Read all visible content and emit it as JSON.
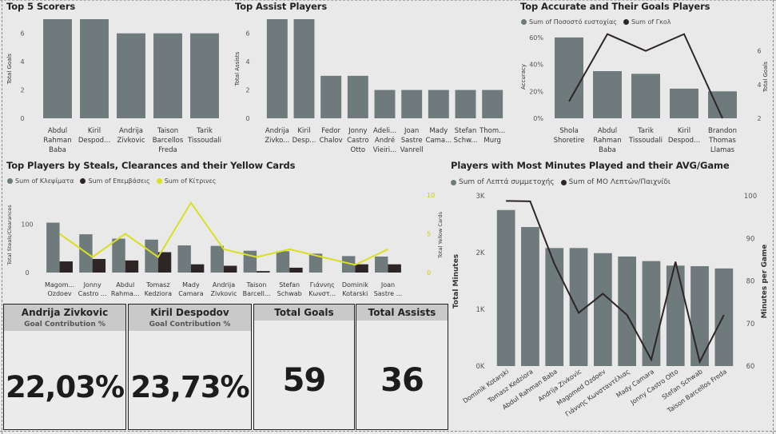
{
  "colors": {
    "bar": "#6e7a7b",
    "dark": "#2d2526",
    "yellow": "#d9e021",
    "line": "#2d2526"
  },
  "top_scorers": {
    "title": "Top 5 Scorers",
    "y_label": "Total Goals",
    "chart_data": {
      "type": "bar",
      "categories": [
        "Abdul Rahman Baba",
        "Kiril Despodov",
        "Andrija Zivkovic",
        "Taison Barcellos Freda",
        "Tarik Tissoudali"
      ],
      "tick_labels": [
        [
          "Abdul",
          "Rahman",
          "Baba"
        ],
        [
          "Kiril",
          "Despod..."
        ],
        [
          "Andrija",
          "Zivkovic"
        ],
        [
          "Taison",
          "Barcellos",
          "Freda"
        ],
        [
          "Tarik",
          "Tissoudali"
        ]
      ],
      "values": [
        7,
        7,
        6,
        6,
        6
      ],
      "ylim": [
        0,
        7
      ],
      "yticks": [
        "0",
        "2",
        "4",
        "6"
      ],
      "ylabel": "Total Goals"
    }
  },
  "top_assists": {
    "title": "Top Assist Players",
    "y_label": "Total Assists",
    "chart_data": {
      "type": "bar",
      "categories": [
        "Andrija Zivkovic",
        "Kiril Despodov",
        "Fedor Chalov",
        "Jonny Castro Otto",
        "Adelino André Vieirinha",
        "Joan Sastre Vanrell",
        "Mady Camara",
        "Stefan Schwab",
        "Thomas Murg"
      ],
      "tick_labels": [
        [
          "Andrija",
          "Zivko..."
        ],
        [
          "Kiril",
          "Desp..."
        ],
        [
          "Fedor",
          "Chalov"
        ],
        [
          "Jonny",
          "Castro",
          "Otto"
        ],
        [
          "Adeli...",
          "André",
          "Vieiri..."
        ],
        [
          "Joan",
          "Sastre",
          "Vanrell"
        ],
        [
          "Mady",
          "Cama..."
        ],
        [
          "Stefan",
          "Schw..."
        ],
        [
          "Thom...",
          "Murg"
        ]
      ],
      "values": [
        7,
        7,
        3,
        3,
        2,
        2,
        2,
        2,
        2
      ],
      "ylim": [
        0,
        7
      ],
      "yticks": [
        "0",
        "2",
        "4",
        "6"
      ],
      "ylabel": "Total Assists"
    }
  },
  "accuracy": {
    "title": "Top Accurate and Their Goals Players",
    "legend": [
      "Sum of Ποσοστό ευστοχίας",
      "Sum of Γκολ"
    ],
    "y_label_left": "Accuracy",
    "y_label_right": "Total Goals",
    "chart_data": {
      "type": "bar",
      "categories": [
        "Shola Shoretire",
        "Abdul Rahman Baba",
        "Tarik Tissoudali",
        "Kiril Despodov",
        "Brandon Thomas Llamas"
      ],
      "tick_labels": [
        [
          "Shola",
          "Shoretire"
        ],
        [
          "Abdul",
          "Rahman",
          "Baba"
        ],
        [
          "Tarik",
          "Tissoudali"
        ],
        [
          "Kiril",
          "Despod..."
        ],
        [
          "Brandon",
          "Thomas",
          "Llamas"
        ]
      ],
      "series": [
        {
          "name": "Sum of Ποσοστό ευστοχίας",
          "type": "bar",
          "values": [
            60,
            35,
            33,
            22,
            20
          ]
        },
        {
          "name": "Sum of Γκολ",
          "type": "line",
          "values": [
            3,
            7,
            6,
            7,
            2
          ]
        }
      ],
      "ylim_left": [
        0,
        70
      ],
      "yticks_left": [
        "0%",
        "20%",
        "40%",
        "60%"
      ],
      "ylim_right": [
        2,
        7.6
      ],
      "yticks_right": [
        "2",
        "4",
        "6"
      ]
    }
  },
  "steals": {
    "title": "Top Players by Steals, Clearances and their Yellow Cards",
    "legend": [
      "Sum of Κλεψίματα",
      "Sum of Επεμβάσεις",
      "Sum of Κίτρινες"
    ],
    "y_label_left": "Total Steals/Clearances",
    "y_label_right": "Total Yellow Cards",
    "chart_data": {
      "type": "bar",
      "categories": [
        "Magomed Ozdoev",
        "Jonny Castro Otto",
        "Abdul Rahman Baba",
        "Tomasz Kedziora",
        "Mady Camara",
        "Andrija Zivkovic",
        "Taison Barcellos Freda",
        "Stefan Schwab",
        "Γιάννης Κωνσταντέλιας",
        "Dominik Kotarski",
        "Joan Sastre Vanrell"
      ],
      "tick_labels": [
        [
          "Magom...",
          "Ozdoev"
        ],
        [
          "Jonny",
          "Castro ..."
        ],
        [
          "Abdul",
          "Rahma..."
        ],
        [
          "Tomasz",
          "Kedziora"
        ],
        [
          "Mady",
          "Camara"
        ],
        [
          "Andrija",
          "Zivkovic"
        ],
        [
          "Taison",
          "Barcell..."
        ],
        [
          "Stefan",
          "Schwab"
        ],
        [
          "Γιάννης",
          "Κωνστ..."
        ],
        [
          "Dominik",
          "Kotarski"
        ],
        [
          "Joan",
          "Sastre ..."
        ]
      ],
      "series": [
        {
          "name": "Sum of Κλεψίματα",
          "type": "bar",
          "values": [
            103,
            79,
            70,
            68,
            56,
            55,
            45,
            44,
            39,
            34,
            33
          ]
        },
        {
          "name": "Sum of Επεμβάσεις",
          "type": "bar",
          "values": [
            23,
            28,
            25,
            42,
            17,
            14,
            3,
            10,
            0,
            17,
            17
          ]
        },
        {
          "name": "Sum of Κίτρινες",
          "type": "line",
          "values": [
            5,
            2,
            5,
            2,
            9,
            3,
            2,
            3,
            2,
            1,
            3
          ]
        }
      ],
      "ylim_left": [
        0,
        160
      ],
      "yticks_left": [
        "0",
        "100"
      ],
      "ylim_right": [
        0,
        10
      ],
      "yticks_right": [
        "0",
        "5",
        "10"
      ]
    }
  },
  "minutes": {
    "title": "Players with Most Minutes Played and their AVG/Game",
    "legend": [
      "Sum of Λεπτά συμμετοχής",
      "Sum of ΜΟ Λεπτών/Παιχνίδι"
    ],
    "y_label_left": "Total Minutes",
    "y_label_right": "Minutes per Game",
    "chart_data": {
      "type": "bar",
      "categories": [
        "Dominik Kotarski",
        "Tomasz Kedziora",
        "Abdul Rahman Baba",
        "Andrija Zivkovic",
        "Magomed Ozdoev",
        "Γιάννης Κωνσταντέλιας",
        "Mady Camara",
        "Jonny Castro Otto",
        "Stefan Schwab",
        "Taison Barcellos Freda"
      ],
      "series": [
        {
          "name": "Sum of Λεπτά συμμετοχής",
          "type": "bar",
          "values": [
            2750,
            2450,
            2080,
            2080,
            1990,
            1930,
            1850,
            1770,
            1760,
            1720
          ]
        },
        {
          "name": "Sum of ΜΟ Λεπτών/Παιχνίδι",
          "type": "line",
          "values": [
            98.8,
            98.7,
            84,
            72.5,
            77,
            72,
            61.5,
            84.5,
            61,
            72
          ]
        }
      ],
      "ylim_left": [
        0,
        3000
      ],
      "yticks_left": [
        "0K",
        "1K",
        "2K",
        "3K"
      ],
      "ylim_right": [
        60,
        100
      ],
      "yticks_right": [
        "60",
        "70",
        "80",
        "90",
        "100"
      ]
    }
  },
  "cards": {
    "player1": {
      "name": "Andrija Zivkovic",
      "subtitle": "Goal Contribution %",
      "value": "22,03%"
    },
    "player2": {
      "name": "Kiril Despodov",
      "subtitle": "Goal Contribution %",
      "value": "23,73%"
    },
    "goals": {
      "title": "Total Goals",
      "value": "59"
    },
    "assists": {
      "title": "Total Assists",
      "value": "36"
    }
  }
}
